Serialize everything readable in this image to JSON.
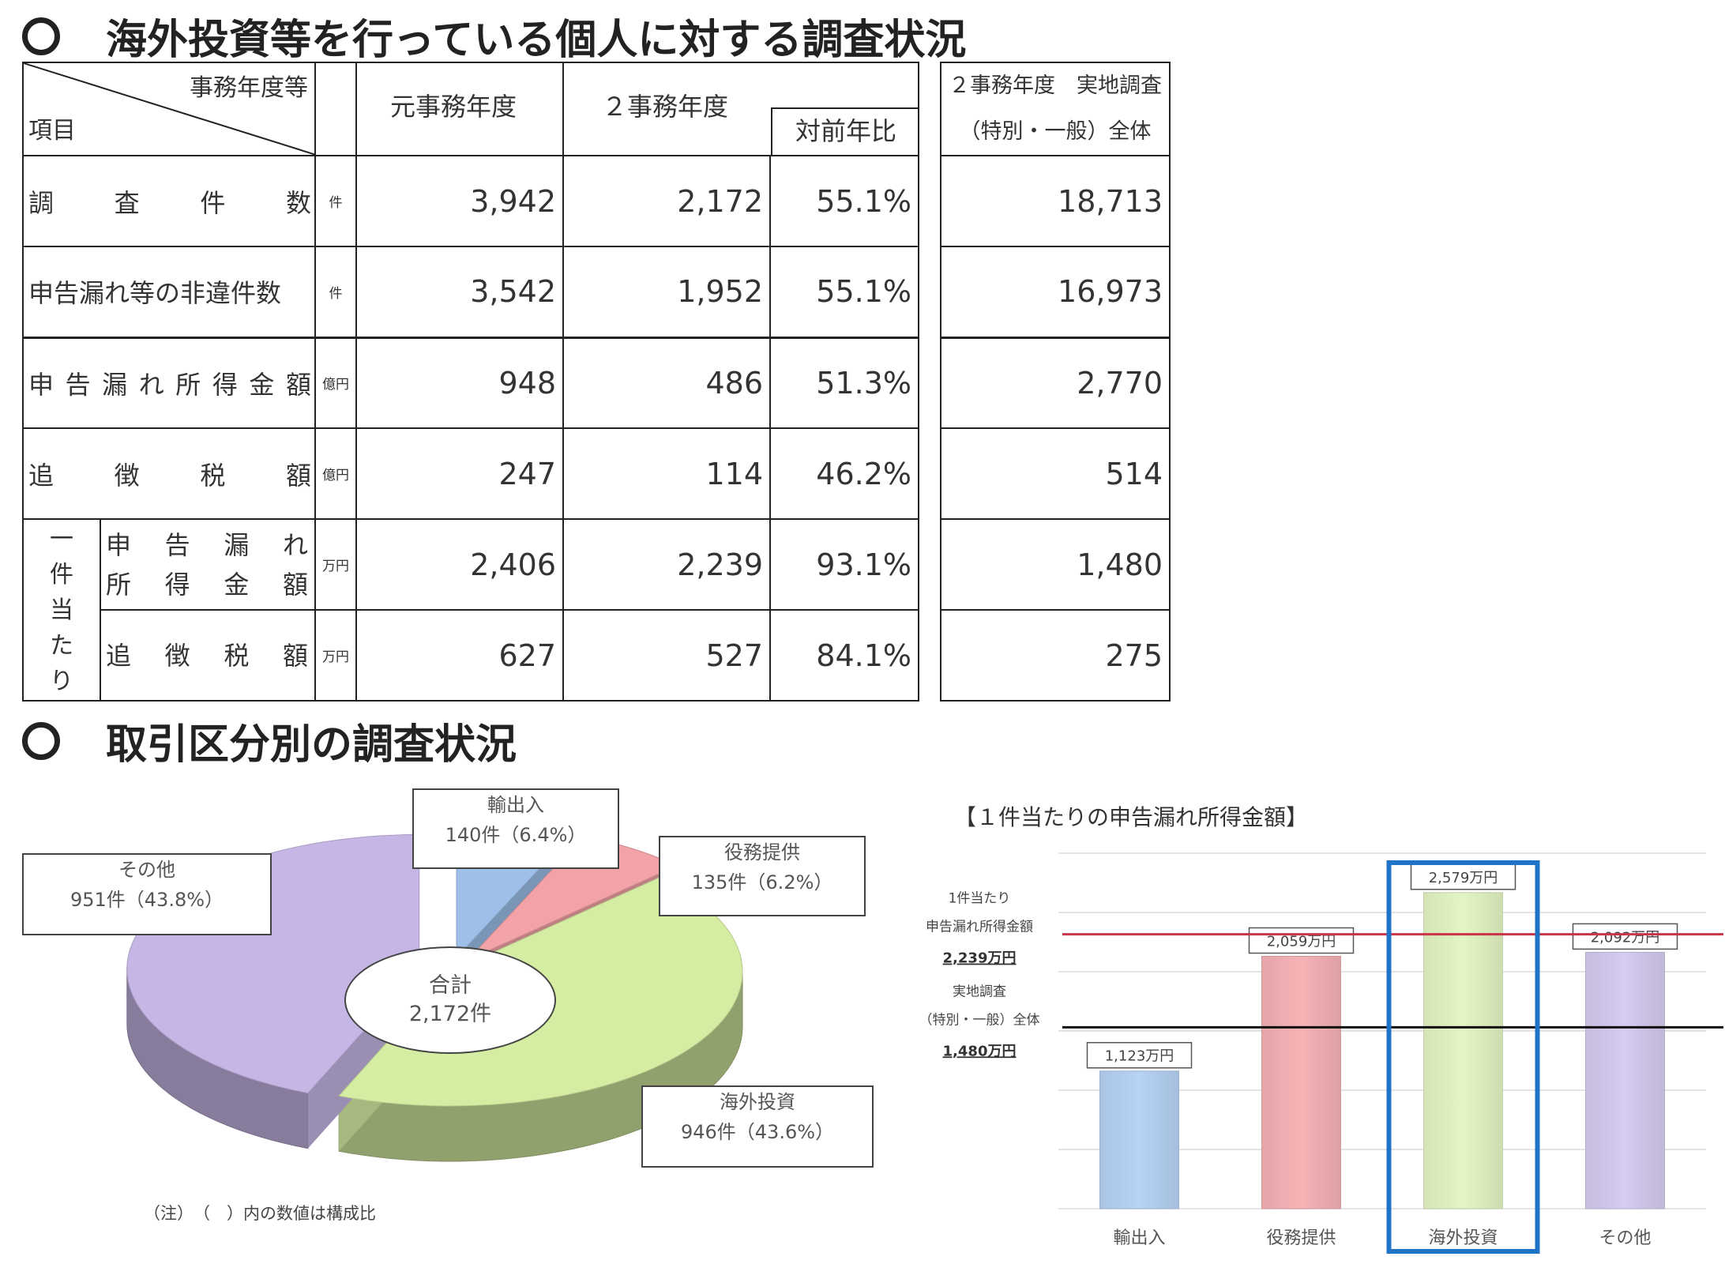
{
  "section1_title": "海外投資等を行っている個人に対する調査状況",
  "section2_title": "取引区分別の調査状況",
  "table": {
    "corner_top": "事務年度等",
    "corner_bottom": "項目",
    "col_prev": "元事務年度",
    "col_curr": "２事務年度",
    "col_ratio": "対前年比",
    "rows": [
      {
        "label": "調査件数",
        "unit": "件",
        "prev": "3,942",
        "curr": "2,172",
        "ratio": "55.1%",
        "total": "18,713"
      },
      {
        "label": "申告漏れ等の非違件数",
        "unit": "件",
        "prev": "3,542",
        "curr": "1,952",
        "ratio": "55.1%",
        "total": "16,973"
      },
      {
        "label": "申告漏れ所得金額",
        "unit": "億円",
        "prev": "948",
        "curr": "486",
        "ratio": "51.3%",
        "total": "2,770"
      },
      {
        "label": "追徴税額",
        "unit": "億円",
        "prev": "247",
        "curr": "114",
        "ratio": "46.2%",
        "total": "514"
      },
      {
        "label_line1": "申告漏れ",
        "label_line2": "所得金額",
        "unit": "万円",
        "prev": "2,406",
        "curr": "2,239",
        "ratio": "93.1%",
        "total": "1,480"
      },
      {
        "label": "追徴税額",
        "unit": "万円",
        "prev": "627",
        "curr": "527",
        "ratio": "84.1%",
        "total": "275"
      }
    ],
    "group_label": "一件当たり",
    "side_head_line1": "２事務年度　実地調査",
    "side_head_line2": "（特別・一般）全体"
  },
  "chart_data": [
    {
      "type": "pie",
      "center_label": "合計",
      "center_value": "2,172件",
      "total": 2172,
      "slices": [
        {
          "name": "輸出入",
          "count": 140,
          "label": "140件（6.4%）",
          "percent": 6.4,
          "color": "#9dbfe8"
        },
        {
          "name": "役務提供",
          "count": 135,
          "label": "135件（6.2%）",
          "percent": 6.2,
          "color": "#f3a3a8"
        },
        {
          "name": "海外投資",
          "count": 946,
          "label": "946件（43.6%）",
          "percent": 43.6,
          "color": "#d5eda2"
        },
        {
          "name": "その他",
          "count": 951,
          "label": "951件（43.8%）",
          "percent": 43.8,
          "color": "#c6b6e6"
        }
      ],
      "note": "（注）　（　）内の数値は構成比"
    },
    {
      "type": "bar",
      "title": "【１件当たりの申告漏れ所得金額】",
      "categories": [
        "輸出入",
        "役務提供",
        "海外投資",
        "その他"
      ],
      "values": [
        1123,
        2059,
        2579,
        2092
      ],
      "value_labels": [
        "1,123万円",
        "2,059万円",
        "2,579万円",
        "2,092万円"
      ],
      "colors": [
        "#b7d3f5",
        "#f6b3b6",
        "#e4f5c4",
        "#d6cbf0"
      ],
      "ylim": [
        0,
        2900
      ],
      "grid": true,
      "highlight_index": 2,
      "highlight_color": "#1f74c8",
      "reference_lines": [
        {
          "value": 2239,
          "line1": "1件当たり",
          "line2": "申告漏れ所得金額",
          "value_label": "2,239万円",
          "color": "#c8344a"
        },
        {
          "value": 1480,
          "line1": "実地調査",
          "line2": "（特別・一般）全体",
          "value_label": "1,480万円",
          "color": "#111111"
        }
      ]
    }
  ]
}
